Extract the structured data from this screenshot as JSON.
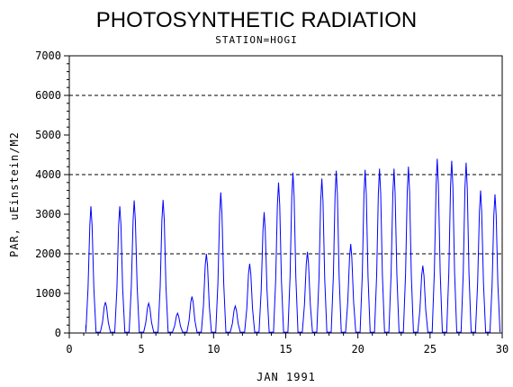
{
  "chart_data": {
    "type": "line",
    "title": "PHOTOSYNTHETIC RADIATION",
    "subtitle": "STATION=HOGI",
    "xlabel": "JAN 1991",
    "ylabel": "PAR, uEinstein/M2",
    "xlim": [
      0,
      30
    ],
    "ylim": [
      0,
      7000
    ],
    "x_ticks": [
      0,
      5,
      10,
      15,
      20,
      25,
      30
    ],
    "y_ticks": [
      0,
      1000,
      2000,
      3000,
      4000,
      5000,
      6000,
      7000
    ],
    "reference_lines": [
      2000,
      4000,
      6000
    ],
    "line_color": "#0000ff",
    "daily_peaks": [
      {
        "x": 1.5,
        "y": 3200
      },
      {
        "x": 2.5,
        "y": 780
      },
      {
        "x": 3.5,
        "y": 3200
      },
      {
        "x": 4.5,
        "y": 3350
      },
      {
        "x": 5.5,
        "y": 750
      },
      {
        "x": 6.5,
        "y": 3360
      },
      {
        "x": 7.5,
        "y": 500
      },
      {
        "x": 8.5,
        "y": 920
      },
      {
        "x": 9.5,
        "y": 2000
      },
      {
        "x": 10.5,
        "y": 3550
      },
      {
        "x": 11.5,
        "y": 680
      },
      {
        "x": 12.5,
        "y": 1750
      },
      {
        "x": 13.5,
        "y": 3050
      },
      {
        "x": 14.5,
        "y": 3800
      },
      {
        "x": 15.5,
        "y": 4050
      },
      {
        "x": 16.5,
        "y": 2050
      },
      {
        "x": 17.5,
        "y": 3900
      },
      {
        "x": 18.5,
        "y": 4100
      },
      {
        "x": 19.5,
        "y": 2250
      },
      {
        "x": 20.5,
        "y": 4120
      },
      {
        "x": 21.5,
        "y": 4150
      },
      {
        "x": 22.5,
        "y": 4150
      },
      {
        "x": 23.5,
        "y": 4200
      },
      {
        "x": 24.5,
        "y": 1700
      },
      {
        "x": 25.5,
        "y": 4400
      },
      {
        "x": 26.5,
        "y": 4350
      },
      {
        "x": 27.5,
        "y": 4300
      },
      {
        "x": 28.5,
        "y": 3600
      },
      {
        "x": 29.5,
        "y": 3500
      }
    ],
    "grid": false
  }
}
